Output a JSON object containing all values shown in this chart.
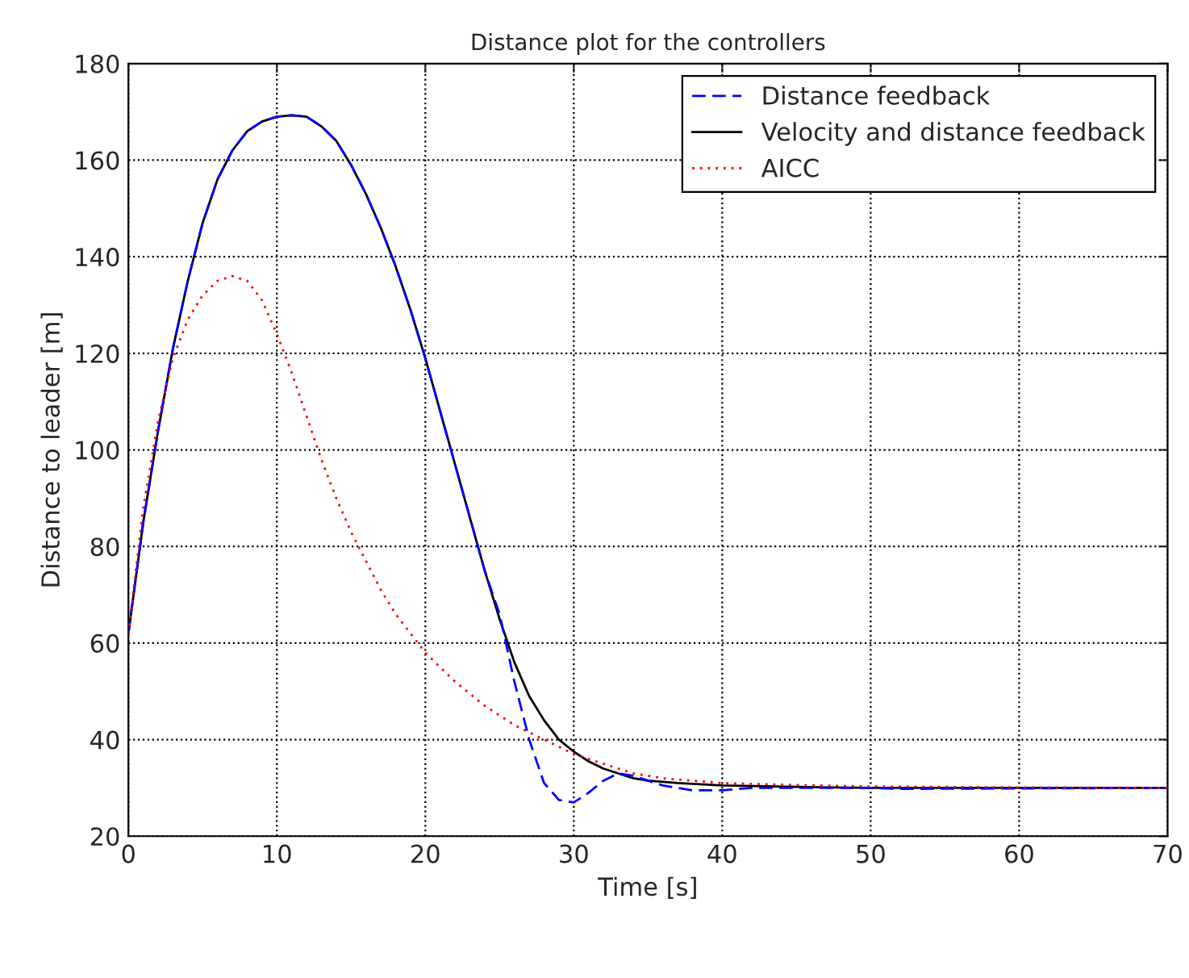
{
  "chart_data": {
    "type": "line",
    "title": "Distance plot for the controllers",
    "xlabel": "Time [s]",
    "ylabel": "Distance to leader [m]",
    "xlim": [
      0,
      70
    ],
    "xticks": [
      0,
      10,
      20,
      30,
      40,
      50,
      60,
      70
    ],
    "ylim": [
      20,
      180
    ],
    "yticks": [
      20,
      40,
      60,
      80,
      100,
      120,
      140,
      160,
      180
    ],
    "grid": true,
    "legend": "top right",
    "series": [
      {
        "name": "Distance feedback",
        "color": "#0000ff",
        "line_style": "dashed",
        "x": [
          0,
          1,
          2,
          3,
          4,
          5,
          6,
          7,
          8,
          9,
          10,
          11,
          12,
          13,
          14,
          15,
          16,
          17,
          18,
          19,
          20,
          21,
          22,
          23,
          24,
          25,
          26,
          27,
          28,
          29,
          30,
          31,
          32,
          33,
          34,
          35,
          36,
          37,
          38,
          40,
          42,
          50,
          52,
          70
        ],
        "values": [
          62,
          85,
          104,
          121,
          135,
          147,
          156,
          162,
          166,
          168,
          169,
          169.3,
          169,
          167,
          164,
          159,
          153,
          146,
          138,
          129,
          119,
          108,
          97,
          86,
          75,
          66,
          52,
          40,
          31,
          27.5,
          27,
          29,
          31.5,
          33,
          32.5,
          31.5,
          30.5,
          30,
          29.5,
          29.5,
          30,
          30,
          29.8,
          30
        ]
      },
      {
        "name": "Velocity and distance feedback",
        "color": "#000000",
        "line_style": "solid",
        "x": [
          0,
          1,
          2,
          3,
          4,
          5,
          6,
          7,
          8,
          9,
          10,
          11,
          12,
          13,
          14,
          15,
          16,
          17,
          18,
          19,
          20,
          21,
          22,
          23,
          24,
          25,
          26,
          27,
          28,
          29,
          30,
          31,
          32,
          33,
          34,
          35,
          37,
          40,
          45,
          50,
          70
        ],
        "values": [
          62,
          85,
          104,
          121,
          135,
          147,
          156,
          162,
          166,
          168,
          169,
          169.3,
          169,
          167,
          164,
          159,
          153,
          146,
          138,
          129,
          119,
          108,
          97,
          86,
          75,
          65,
          56,
          49,
          44,
          40,
          37.5,
          35.5,
          34,
          33,
          32,
          31.5,
          31,
          30.5,
          30.2,
          30,
          30
        ]
      },
      {
        "name": "AICC",
        "color": "#ff0000",
        "line_style": "dotted",
        "x": [
          0,
          1,
          2,
          3,
          4,
          5,
          6,
          7,
          8,
          9,
          10,
          11,
          12,
          13,
          14,
          15,
          16,
          17,
          18,
          19,
          20,
          22,
          24,
          26,
          28,
          30,
          32,
          34,
          36,
          38,
          40,
          45,
          50,
          60,
          70
        ],
        "values": [
          62,
          88,
          106,
          119,
          127,
          132,
          135,
          136,
          135,
          131,
          124,
          116,
          107,
          98,
          90,
          83,
          77,
          71,
          66,
          62,
          58,
          52,
          47,
          43,
          40,
          37,
          35,
          33,
          32,
          31.5,
          31,
          30.6,
          30.3,
          30.1,
          30
        ]
      }
    ]
  }
}
